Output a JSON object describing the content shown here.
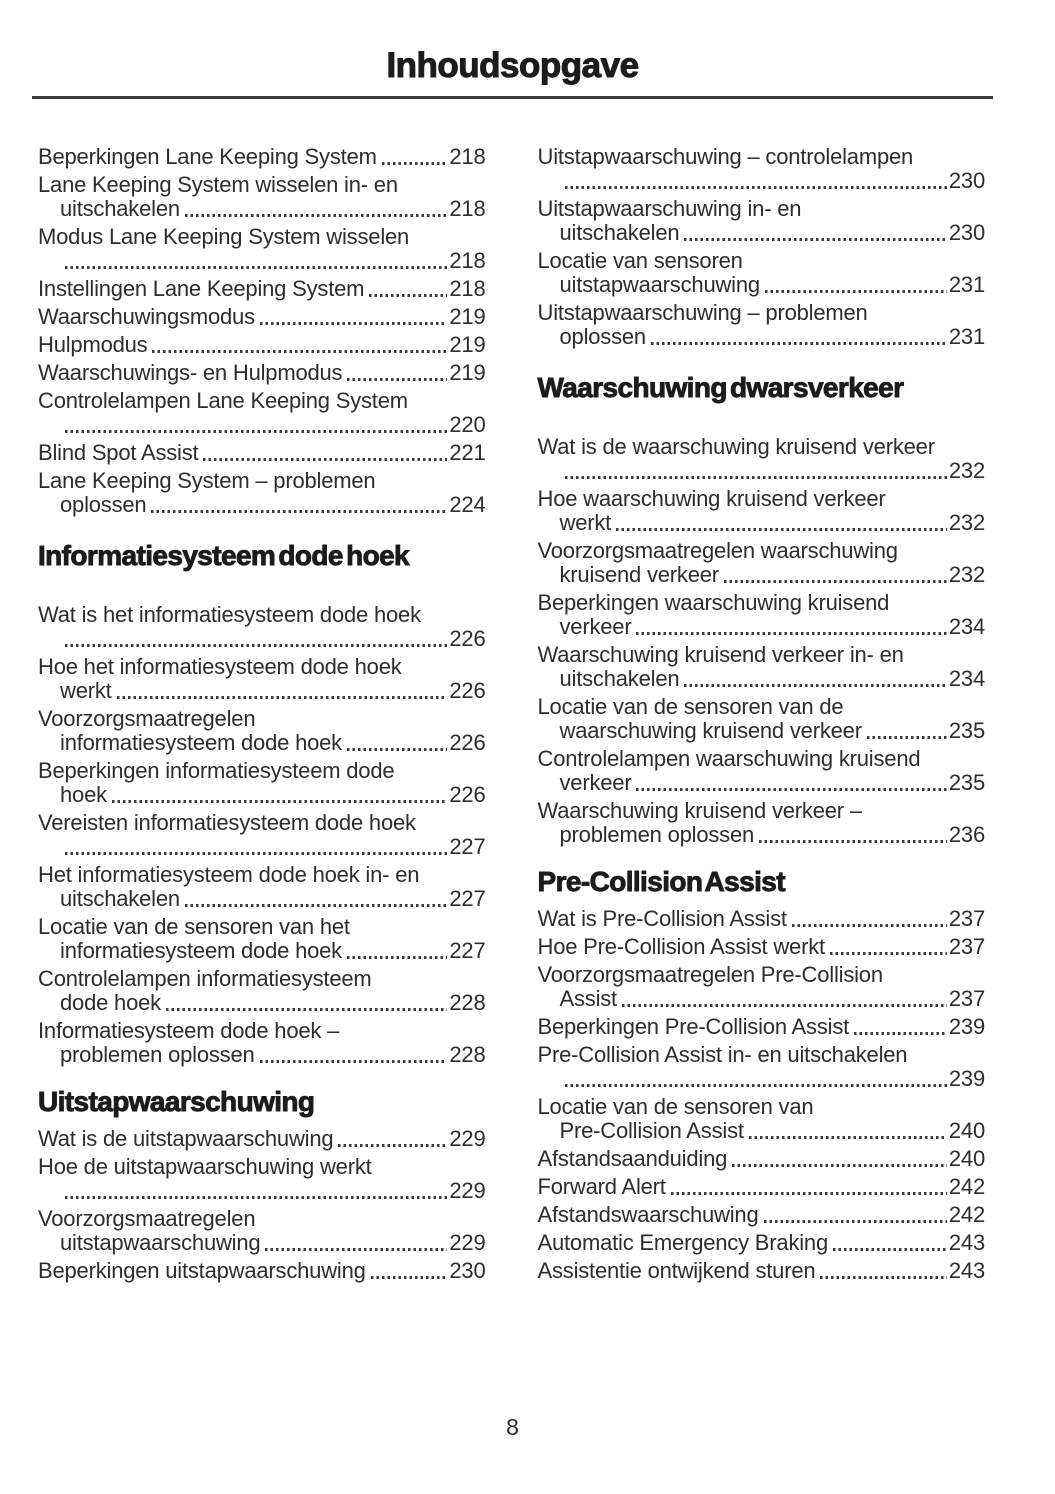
{
  "header": {
    "title": "Inhoudsopgave"
  },
  "footer": {
    "page_number": "8"
  },
  "colors": {
    "heading_text": "#1c1c1c",
    "body_text": "#2d2d2d",
    "rule": "#3b3b3b"
  },
  "toc": {
    "columns": [
      {
        "sections": [
          {
            "heading": null,
            "entries": [
              {
                "text": "Beperkingen Lane Keeping System",
                "page": "218"
              },
              {
                "text": "Lane Keeping System wisselen in- en",
                "cont": "uitschakelen",
                "page": "218"
              },
              {
                "text": "Modus Lane Keeping System wisselen",
                "cont": "",
                "page": "218"
              },
              {
                "text": "Instellingen Lane Keeping System",
                "page": "218"
              },
              {
                "text": "Waarschuwingsmodus",
                "page": "219"
              },
              {
                "text": "Hulpmodus",
                "page": "219"
              },
              {
                "text": "Waarschuwings- en Hulpmodus",
                "page": "219"
              },
              {
                "text": "Controlelampen Lane Keeping System",
                "cont": "",
                "page": "220"
              },
              {
                "text": "Blind Spot Assist",
                "page": "221"
              },
              {
                "text": "Lane Keeping System – problemen",
                "cont": "oplossen",
                "page": "224"
              }
            ]
          },
          {
            "heading": "Informatiesysteem dode hoek",
            "entries": [
              {
                "text": "Wat is het informatiesysteem dode hoek",
                "cont": "",
                "page": "226"
              },
              {
                "text": "Hoe het informatiesysteem dode hoek",
                "cont": "werkt",
                "page": "226"
              },
              {
                "text": "Voorzorgsmaatregelen",
                "cont": "informatiesysteem dode hoek",
                "page": "226"
              },
              {
                "text": "Beperkingen informatiesysteem dode",
                "cont": "hoek",
                "page": "226"
              },
              {
                "text": "Vereisten informatiesysteem dode hoek",
                "cont": "",
                "page": "227"
              },
              {
                "text": "Het informatiesysteem dode hoek in- en",
                "cont": "uitschakelen",
                "page": "227"
              },
              {
                "text": "Locatie van de sensoren van het",
                "cont": "informatiesysteem dode hoek",
                "page": "227"
              },
              {
                "text": "Controlelampen informatiesysteem",
                "cont": "dode hoek",
                "page": "228"
              },
              {
                "text": "Informatiesysteem dode hoek –",
                "cont": "problemen oplossen",
                "page": "228"
              }
            ]
          },
          {
            "heading": "Uitstapwaarschuwing",
            "entries": [
              {
                "text": "Wat is de uitstapwaarschuwing",
                "page": "229"
              },
              {
                "text": "Hoe de uitstapwaarschuwing werkt",
                "cont": "",
                "page": "229"
              },
              {
                "text": "Voorzorgsmaatregelen",
                "cont": "uitstapwaarschuwing",
                "page": "229"
              },
              {
                "text": "Beperkingen uitstapwaarschuwing",
                "page": "230"
              }
            ]
          }
        ]
      },
      {
        "sections": [
          {
            "heading": null,
            "entries": [
              {
                "text": "Uitstapwaarschuwing – controlelampen",
                "cont": "",
                "page": "230"
              },
              {
                "text": "Uitstapwaarschuwing in- en",
                "cont": "uitschakelen",
                "page": "230"
              },
              {
                "text": "Locatie van sensoren",
                "cont": "uitstapwaarschuwing",
                "page": "231"
              },
              {
                "text": "Uitstapwaarschuwing – problemen",
                "cont": "oplossen",
                "page": "231"
              }
            ]
          },
          {
            "heading": "Waarschuwing dwarsverkeer",
            "entries": [
              {
                "text": "Wat is de waarschuwing kruisend verkeer",
                "cont": "",
                "page": "232"
              },
              {
                "text": "Hoe waarschuwing kruisend verkeer",
                "cont": "werkt",
                "page": "232"
              },
              {
                "text": "Voorzorgsmaatregelen waarschuwing",
                "cont": "kruisend verkeer",
                "page": "232"
              },
              {
                "text": "Beperkingen waarschuwing kruisend",
                "cont": "verkeer",
                "page": "234"
              },
              {
                "text": "Waarschuwing kruisend verkeer in- en",
                "cont": "uitschakelen",
                "page": "234"
              },
              {
                "text": "Locatie van de sensoren van de",
                "cont": "waarschuwing kruisend verkeer",
                "page": "235"
              },
              {
                "text": "Controlelampen waarschuwing kruisend",
                "cont": "verkeer",
                "page": "235"
              },
              {
                "text": "Waarschuwing kruisend verkeer –",
                "cont": "problemen oplossen",
                "page": "236"
              }
            ]
          },
          {
            "heading": "Pre-Collision Assist",
            "entries": [
              {
                "text": "Wat is Pre-Collision Assist",
                "page": "237"
              },
              {
                "text": "Hoe Pre-Collision Assist werkt",
                "page": "237"
              },
              {
                "text": "Voorzorgsmaatregelen Pre-Collision",
                "cont": "Assist",
                "page": "237"
              },
              {
                "text": "Beperkingen Pre-Collision Assist",
                "page": "239"
              },
              {
                "text": "Pre-Collision Assist in- en uitschakelen",
                "cont": "",
                "page": "239"
              },
              {
                "text": "Locatie van de sensoren van",
                "cont": "Pre-Collision Assist",
                "page": "240"
              },
              {
                "text": "Afstandsaanduiding",
                "page": "240"
              },
              {
                "text": "Forward Alert",
                "page": "242"
              },
              {
                "text": "Afstandswaarschuwing",
                "page": "242"
              },
              {
                "text": "Automatic Emergency Braking",
                "page": "243"
              },
              {
                "text": "Assistentie ontwijkend sturen",
                "page": "243"
              }
            ]
          }
        ]
      }
    ]
  }
}
